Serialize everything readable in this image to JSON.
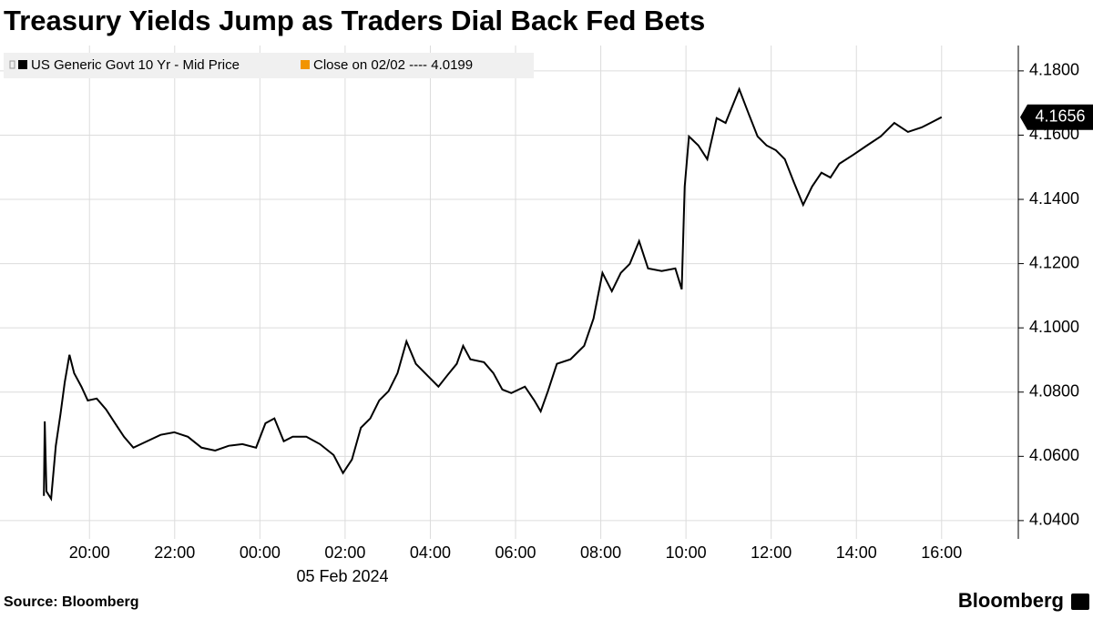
{
  "chart_data": {
    "type": "line",
    "title": "Treasury Yields Jump as Traders Dial Back Fed Bets",
    "x_label": "05 Feb 2024",
    "source": "Source: Bloomberg",
    "logo": "Bloomberg",
    "reference_legend": {
      "name": "Close on 02/02 ---- 4.0199",
      "color": "#f29400"
    },
    "x": [
      18.93,
      18.95,
      18.99,
      19.1,
      19.21,
      19.32,
      19.42,
      19.53,
      19.64,
      19.81,
      19.96,
      20.17,
      20.39,
      20.6,
      20.81,
      21.03,
      21.35,
      21.67,
      21.99,
      22.31,
      22.63,
      22.95,
      23.27,
      23.59,
      23.91,
      24.13,
      24.34,
      24.56,
      24.77,
      25.09,
      25.41,
      25.73,
      25.95,
      26.16,
      26.37,
      26.59,
      26.8,
      27.02,
      27.23,
      27.44,
      27.66,
      27.98,
      28.19,
      28.41,
      28.62,
      28.77,
      28.94,
      29.26,
      29.48,
      29.69,
      29.9,
      30.22,
      30.44,
      30.59,
      30.76,
      30.97,
      31.29,
      31.61,
      31.83,
      32.04,
      32.26,
      32.47,
      32.68,
      32.9,
      33.11,
      33.43,
      33.75,
      33.9,
      33.97,
      34.07,
      34.29,
      34.5,
      34.72,
      34.93,
      35.25,
      35.47,
      35.68,
      35.89,
      36.11,
      36.32,
      36.53,
      36.75,
      36.96,
      37.18,
      37.39,
      37.6,
      37.93,
      38.25,
      38.57,
      38.89,
      39.21,
      39.53,
      39.74,
      40.0
    ],
    "series": [
      {
        "name": "US Generic Govt 10 Yr - Mid Price",
        "color": "#000000",
        "values": [
          4.0477,
          4.0709,
          4.0491,
          4.0468,
          4.0633,
          4.0732,
          4.0831,
          4.0916,
          4.0859,
          4.0817,
          4.0774,
          4.078,
          4.0746,
          4.0703,
          4.0661,
          4.0627,
          4.0647,
          4.0667,
          4.0675,
          4.0661,
          4.0627,
          4.0618,
          4.0633,
          4.0638,
          4.0627,
          4.0703,
          4.0718,
          4.0647,
          4.0661,
          4.0661,
          4.0638,
          4.0604,
          4.0548,
          4.059,
          4.0689,
          4.0718,
          4.0774,
          4.0803,
          4.0859,
          4.0958,
          4.0888,
          4.0845,
          4.0817,
          4.0854,
          4.0888,
          4.0944,
          4.0902,
          4.0893,
          4.0859,
          4.0808,
          4.0797,
          4.0817,
          4.0774,
          4.074,
          4.0803,
          4.0888,
          4.0902,
          4.0944,
          4.1029,
          4.1171,
          4.1114,
          4.1171,
          4.1199,
          4.127,
          4.1185,
          4.1177,
          4.1185,
          4.112,
          4.144,
          4.1596,
          4.1568,
          4.1525,
          4.1653,
          4.1638,
          4.1743,
          4.1667,
          4.1596,
          4.1568,
          4.1553,
          4.1525,
          4.1454,
          4.1383,
          4.144,
          4.1483,
          4.1468,
          4.1511,
          4.1539,
          4.1568,
          4.1596,
          4.1638,
          4.161,
          4.1624,
          4.1638,
          4.1656
        ]
      }
    ],
    "xlim": [
      17.9,
      41.8
    ],
    "xticks": [
      {
        "value": 20,
        "label": "20:00"
      },
      {
        "value": 22,
        "label": "22:00"
      },
      {
        "value": 24,
        "label": "00:00"
      },
      {
        "value": 26,
        "label": "02:00"
      },
      {
        "value": 28,
        "label": "04:00"
      },
      {
        "value": 30,
        "label": "06:00"
      },
      {
        "value": 32,
        "label": "08:00"
      },
      {
        "value": 34,
        "label": "10:00"
      },
      {
        "value": 36,
        "label": "12:00"
      },
      {
        "value": 38,
        "label": "14:00"
      },
      {
        "value": 40,
        "label": "16:00"
      }
    ],
    "ylim": [
      4.0343,
      4.1879
    ],
    "yticks": [
      {
        "value": 4.04,
        "label": "4.0400"
      },
      {
        "value": 4.06,
        "label": "4.0600"
      },
      {
        "value": 4.08,
        "label": "4.0800"
      },
      {
        "value": 4.1,
        "label": "4.1000"
      },
      {
        "value": 4.12,
        "label": "4.1200"
      },
      {
        "value": 4.14,
        "label": "4.1400"
      },
      {
        "value": 4.16,
        "label": "4.1600"
      },
      {
        "value": 4.18,
        "label": "4.1800"
      }
    ],
    "grid": true,
    "y_axis_side": "right"
  }
}
